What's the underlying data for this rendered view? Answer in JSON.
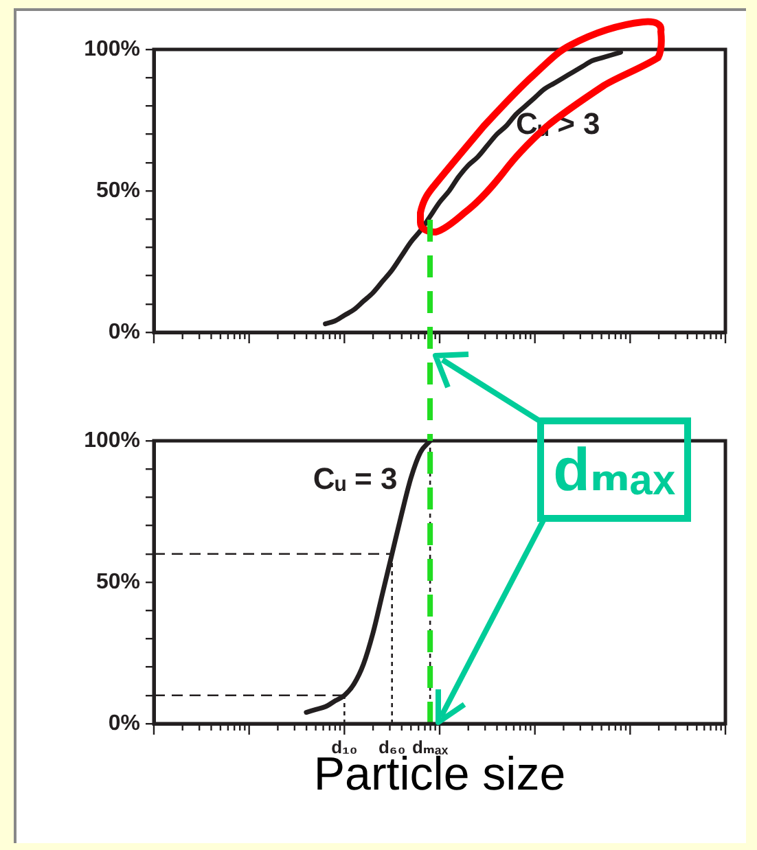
{
  "chart_data": [
    {
      "type": "line",
      "categories": [
        null,
        null,
        null,
        null,
        null,
        null,
        null,
        null,
        null,
        null,
        null,
        null,
        null,
        null,
        null,
        null,
        null,
        null,
        null,
        null,
        null,
        null,
        null,
        null,
        null,
        null,
        null,
        null,
        null,
        null,
        null,
        null,
        null,
        null,
        null,
        null,
        null,
        null,
        null,
        null,
        null,
        null,
        null,
        null,
        null,
        null,
        null,
        null,
        null,
        null,
        null,
        null,
        null,
        null,
        null,
        null,
        null,
        null,
        null,
        null,
        null
      ],
      "series": [
        {
          "name": "Cᵤ > 3",
          "color": "#231f20",
          "values": [
            null,
            null,
            null,
            null,
            null,
            null,
            null,
            null,
            null,
            null,
            null,
            null,
            null,
            null,
            null,
            null,
            null,
            null,
            3,
            4,
            6,
            8,
            11,
            14,
            18,
            22,
            27,
            32,
            36,
            41,
            46,
            50,
            55,
            59,
            62,
            66,
            70,
            73,
            77,
            80,
            83,
            86,
            88,
            90,
            92,
            94,
            96,
            97,
            98,
            99,
            null,
            null,
            null,
            null,
            null,
            null,
            null,
            null,
            null,
            null,
            null
          ]
        }
      ],
      "ylim": [
        0,
        100
      ],
      "yticks": [
        {
          "value": 0,
          "label": "0%"
        },
        {
          "value": 10,
          "label": null
        },
        {
          "value": 20,
          "label": null
        },
        {
          "value": 30,
          "label": null
        },
        {
          "value": 40,
          "label": null
        },
        {
          "value": 50,
          "label": "50%"
        },
        {
          "value": 60,
          "label": null
        },
        {
          "value": 70,
          "label": null
        },
        {
          "value": 80,
          "label": null
        },
        {
          "value": 90,
          "label": null
        },
        {
          "value": 100,
          "label": "100%"
        }
      ],
      "grid": false
    },
    {
      "type": "line",
      "categories": [
        null,
        null,
        null,
        null,
        null,
        null,
        null,
        null,
        null,
        null,
        null,
        null,
        null,
        null,
        null,
        null,
        null,
        null,
        null,
        null,
        "d₁₀",
        null,
        null,
        null,
        null,
        "d₆₀",
        null,
        null,
        null,
        "dₘₐₓ",
        null,
        null,
        null,
        null,
        null,
        null,
        null,
        null,
        null,
        null,
        null,
        null,
        null,
        null,
        null,
        null,
        null,
        null,
        null,
        null,
        null,
        null,
        null,
        null,
        null,
        null,
        null,
        null,
        null,
        null,
        null
      ],
      "series": [
        {
          "name": "Cᵤ = 3",
          "color": "#231f20",
          "values": [
            null,
            null,
            null,
            null,
            null,
            null,
            null,
            null,
            null,
            null,
            null,
            null,
            null,
            null,
            null,
            null,
            4,
            5,
            6,
            8,
            10,
            14,
            21,
            32,
            46,
            60,
            74,
            87,
            96,
            100,
            null,
            null,
            null,
            null,
            null,
            null,
            null,
            null,
            null,
            null,
            null,
            null,
            null,
            null,
            null,
            null,
            null,
            null,
            null,
            null,
            null,
            null,
            null,
            null,
            null,
            null,
            null,
            null,
            null,
            null,
            null
          ]
        }
      ],
      "ylim": [
        0,
        100
      ],
      "yticks": [
        {
          "value": 0,
          "label": "0%"
        },
        {
          "value": 10,
          "label": null
        },
        {
          "value": 20,
          "label": null
        },
        {
          "value": 30,
          "label": null
        },
        {
          "value": 40,
          "label": null
        },
        {
          "value": 50,
          "label": "50%"
        },
        {
          "value": 60,
          "label": null
        },
        {
          "value": 70,
          "label": null
        },
        {
          "value": 80,
          "label": null
        },
        {
          "value": 90,
          "label": null
        },
        {
          "value": 100,
          "label": "100%"
        }
      ],
      "grid": false,
      "xlabel": "Particle size",
      "annotations": [
        "dₘₐₓ"
      ],
      "ref_lines": [
        {
          "axis": "y",
          "value": 10,
          "line_style": "dashed"
        },
        {
          "axis": "y",
          "value": 60,
          "line_style": "dashed"
        },
        {
          "axis": "x",
          "value": "d₁₀",
          "line_style": "dotted"
        },
        {
          "axis": "x",
          "value": "d₆₀",
          "line_style": "dotted"
        },
        {
          "axis": "x",
          "value": "dₘₐₓ",
          "line_style": "dotted"
        },
        {
          "axis": "x",
          "value": "dₘₐₓ",
          "color": "#22dd22",
          "line_style": "dashed"
        }
      ]
    }
  ]
}
